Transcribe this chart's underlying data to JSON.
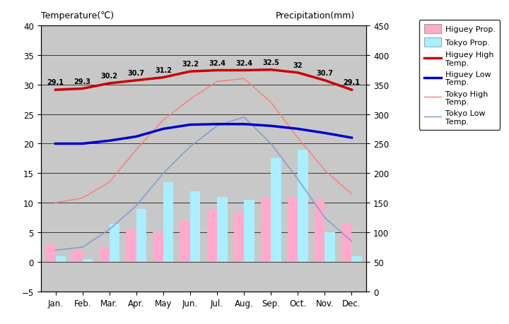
{
  "months": [
    "Jan.",
    "Feb.",
    "Mar.",
    "Apr.",
    "May",
    "Jun.",
    "Jul.",
    "Aug.",
    "Sep.",
    "Oct.",
    "Nov.",
    "Dec."
  ],
  "higuey_high_temp": [
    29.1,
    29.3,
    30.2,
    30.7,
    31.2,
    32.2,
    32.4,
    32.4,
    32.5,
    32.0,
    30.7,
    29.1
  ],
  "higuey_low_temp": [
    20.0,
    20.0,
    20.5,
    21.2,
    22.5,
    23.2,
    23.3,
    23.3,
    23.0,
    22.5,
    21.8,
    21.0
  ],
  "tokyo_high_temp": [
    10.0,
    10.8,
    13.5,
    19.0,
    24.0,
    27.5,
    30.5,
    31.0,
    27.0,
    21.0,
    15.5,
    11.5
  ],
  "tokyo_low_temp": [
    2.0,
    2.5,
    5.5,
    9.5,
    15.0,
    19.5,
    23.0,
    24.5,
    20.0,
    14.0,
    7.5,
    3.5
  ],
  "higuey_precip_bars": [
    3.0,
    2.0,
    2.5,
    5.5,
    5.0,
    7.0,
    9.0,
    8.5,
    11.0,
    11.0,
    10.5,
    6.5
  ],
  "tokyo_precip_bars": [
    1.0,
    0.5,
    6.5,
    9.0,
    13.5,
    12.0,
    11.0,
    10.5,
    17.5,
    19.0,
    5.0,
    1.0
  ],
  "higuey_high_color": "#cc0000",
  "higuey_low_color": "#0000cc",
  "tokyo_high_color": "#ff7777",
  "tokyo_low_color": "#7799cc",
  "higuey_bar_color": "#ffaacc",
  "tokyo_bar_color": "#aaeeff",
  "bg_color": "#c8c8c8",
  "ylim_left": [
    -5,
    40
  ],
  "ylim_right": [
    0,
    450
  ],
  "higuey_high_labels": [
    "29.1",
    "29.3",
    "30.2",
    "30.7",
    "31.2",
    "32.2",
    "32.4",
    "32.4",
    "32.5",
    "32",
    "30.7",
    "29.1"
  ],
  "left_yticks": [
    -5,
    0,
    5,
    10,
    15,
    20,
    25,
    30,
    35,
    40
  ],
  "right_yticks": [
    0,
    50,
    100,
    150,
    200,
    250,
    300,
    350,
    400,
    450
  ]
}
